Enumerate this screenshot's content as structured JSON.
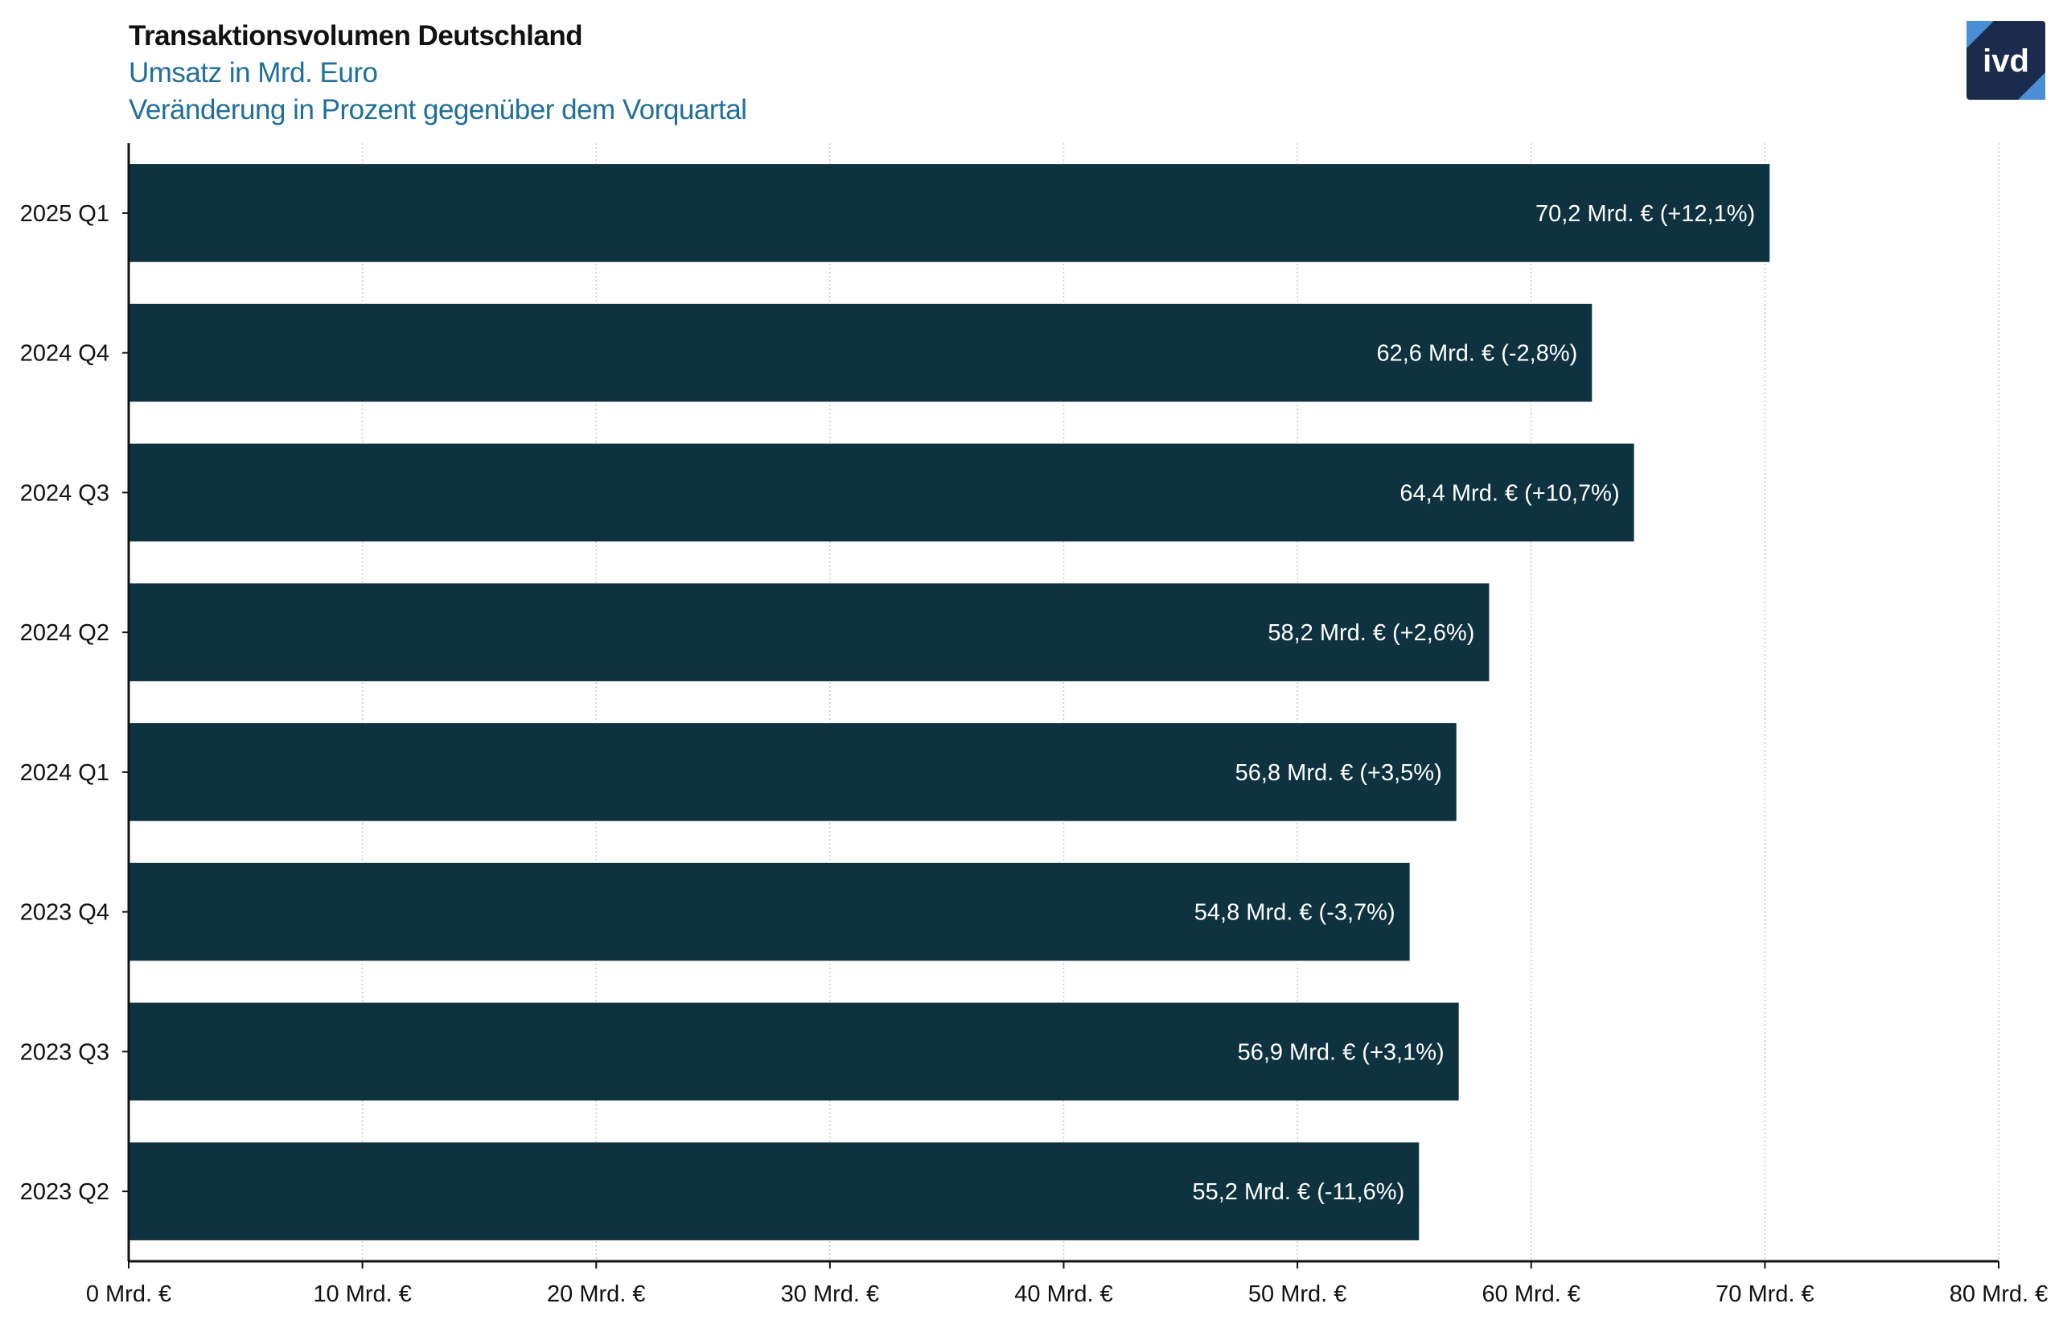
{
  "header": {
    "title": "Transaktionsvolumen Deutschland",
    "subtitle1": "Umsatz in Mrd. Euro",
    "subtitle2": "Veränderung in Prozent gegenüber dem Vorquartal"
  },
  "logo": {
    "text": "ivd",
    "icon": "ivd-logo-icon",
    "bg_color": "#1b2b4d",
    "accent_color": "#4a8ed6"
  },
  "colors": {
    "bar": "#0e3240",
    "bar_text": "#ffffff",
    "grid": "#cccccc",
    "axis": "#111111"
  },
  "chart_data": {
    "type": "bar",
    "orientation": "horizontal",
    "categories": [
      "2025 Q1",
      "2024 Q4",
      "2024 Q3",
      "2024 Q2",
      "2024 Q1",
      "2023 Q4",
      "2023 Q3",
      "2023 Q2"
    ],
    "values": [
      70.2,
      62.6,
      64.4,
      58.2,
      56.8,
      54.8,
      56.9,
      55.2
    ],
    "data_labels": [
      "70,2 Mrd. € (+12,1%)",
      "62,6 Mrd. € (-2,8%)",
      "64,4 Mrd. € (+10,7%)",
      "58,2 Mrd. € (+2,6%)",
      "56,8 Mrd. € (+3,5%)",
      "54,8 Mrd. € (-3,7%)",
      "56,9 Mrd. € (+3,1%)",
      "55,2 Mrd. € (-11,6%)"
    ],
    "title": "Transaktionsvolumen Deutschland",
    "xlim": [
      0,
      80
    ],
    "xticks": [
      0,
      10,
      20,
      30,
      40,
      50,
      60,
      70,
      80
    ],
    "xtick_labels": [
      "0 Mrd. €",
      "10 Mrd. €",
      "20 Mrd. €",
      "30 Mrd. €",
      "40 Mrd. €",
      "50 Mrd. €",
      "60 Mrd. €",
      "70 Mrd. €",
      "80 Mrd. €"
    ],
    "grid": "vertical dotted",
    "legend": "none"
  }
}
